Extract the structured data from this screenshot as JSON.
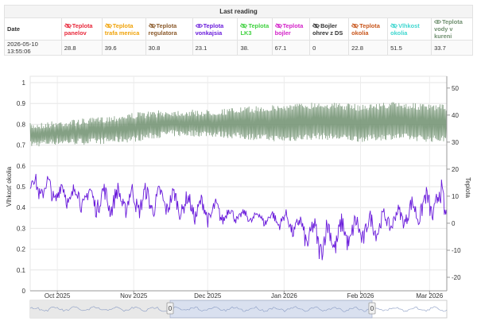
{
  "table": {
    "caption": "Last reading",
    "columns": [
      {
        "label": "Date",
        "color": "#333333",
        "eye": "none"
      },
      {
        "label": "Teplota panelov",
        "color": "#e8283a",
        "eye": "slashed"
      },
      {
        "label": "Teplota trafa menica",
        "color": "#f0a30a",
        "eye": "slashed"
      },
      {
        "label": "Teplota regulatora",
        "color": "#8b5a2b",
        "eye": "slashed"
      },
      {
        "label": "Teplota vonkajsia",
        "color": "#6a1cdb",
        "eye": "open"
      },
      {
        "label": "Teplota LK3",
        "color": "#3fd13f",
        "eye": "slashed"
      },
      {
        "label": "Teplota bojler",
        "color": "#d321c8",
        "eye": "slashed"
      },
      {
        "label": "Bojler ohrev z DS",
        "color": "#333333",
        "eye": "slashed"
      },
      {
        "label": "Teplota okolia",
        "color": "#c8561c",
        "eye": "slashed"
      },
      {
        "label": "Vlhkost okolia",
        "color": "#3ed6cf",
        "eye": "slashed"
      },
      {
        "label": "Teplota vody v kureni",
        "color": "#6f8f6f",
        "eye": "open"
      }
    ],
    "values": [
      "2026-05-10 13:55:06",
      "28.8",
      "39.6",
      "30.8",
      "23.1",
      "38.",
      "67.1",
      "0",
      "22.8",
      "51.5",
      "33.7"
    ]
  },
  "chart_data": {
    "type": "line",
    "left_axis": {
      "label": "Vlhkosť okolia",
      "ticks": [
        "0",
        "0.1",
        "0.2",
        "0.3",
        "0.4",
        "0.5",
        "0.6",
        "0.7",
        "0.8",
        "0.9",
        "1"
      ],
      "range": [
        0,
        1
      ]
    },
    "right_axis": {
      "label": "Teplota",
      "ticks": [
        "-20",
        "-10",
        "0",
        "10",
        "20",
        "30",
        "40",
        "50"
      ],
      "range": [
        -25,
        52
      ]
    },
    "x_ticks": [
      "Oct 2025",
      "Nov 2025",
      "Dec 2025",
      "Jan 2026",
      "Feb 2026",
      "Mar 2026"
    ],
    "x_range": [
      "2025-09-20",
      "2026-03-08"
    ],
    "grid": true,
    "series": [
      {
        "name": "Teplota vody v kureni",
        "axis": "right",
        "color": "#6f8f6f",
        "x": [
          "2025-09-20",
          "2025-10-01",
          "2025-10-15",
          "2025-11-01",
          "2025-11-15",
          "2025-12-01",
          "2025-12-15",
          "2026-01-01",
          "2026-01-15",
          "2026-02-01",
          "2026-02-15",
          "2026-03-01",
          "2026-03-08"
        ],
        "low": [
          28,
          29,
          29,
          30,
          32,
          32,
          31,
          30,
          31,
          30,
          31,
          30,
          30
        ],
        "high": [
          37,
          38,
          39,
          41,
          42,
          42,
          43,
          44,
          45,
          44,
          45,
          44,
          44
        ]
      },
      {
        "name": "Teplota vonkajsia",
        "axis": "right",
        "color": "#6a1cdb",
        "x": [
          "2025-09-20",
          "2025-10-01",
          "2025-10-15",
          "2025-11-01",
          "2025-11-15",
          "2025-12-01",
          "2025-12-15",
          "2026-01-01",
          "2026-01-15",
          "2026-02-01",
          "2026-02-15",
          "2026-03-01",
          "2026-03-08"
        ],
        "low": [
          8,
          5,
          2,
          1,
          2,
          -2,
          0,
          -3,
          -15,
          -10,
          -3,
          -1,
          -4
        ],
        "high": [
          20,
          17,
          15,
          15,
          14,
          10,
          5,
          5,
          2,
          4,
          6,
          14,
          18
        ]
      }
    ]
  },
  "navigator": {
    "handle_left": "0",
    "handle_right": "0"
  }
}
